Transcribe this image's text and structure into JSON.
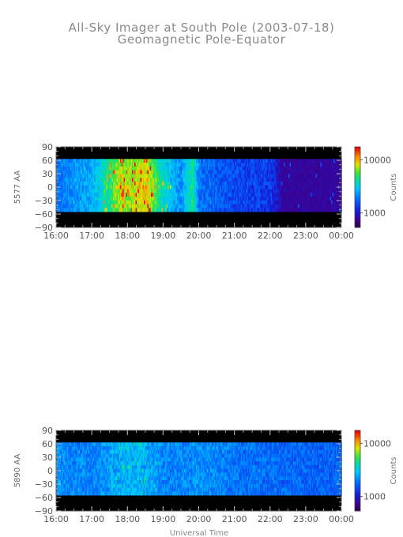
{
  "title": "All-Sky Imager at South Pole (2003-07-18)",
  "subtitle": "Geomagnetic Pole-Equator",
  "xlabel": "Universal Time",
  "chart_data": [
    {
      "type": "heatmap",
      "ylabel": "5577 AA",
      "x_ticks": [
        "16:00",
        "17:00",
        "18:00",
        "19:00",
        "20:00",
        "21:00",
        "22:00",
        "23:00",
        "00:00"
      ],
      "y_ticks": [
        "90",
        "60",
        "30",
        "0",
        "-30",
        "-60",
        "-90"
      ],
      "ylim": [
        -90,
        90
      ],
      "data_ylim": [
        -55,
        63
      ],
      "colorbar": {
        "title": "Counts",
        "ticks": [
          "10000",
          "1000"
        ],
        "scale": "log"
      },
      "intensity_profile": {
        "note_hours": [
          16,
          17,
          17.5,
          17.8,
          18.0,
          18.5,
          19.0,
          19.5,
          19.8,
          20.0,
          21.0,
          22.0,
          22.3,
          23.0,
          24.0
        ],
        "level": [
          0.35,
          0.45,
          0.6,
          0.75,
          0.7,
          0.78,
          0.5,
          0.4,
          0.62,
          0.35,
          0.28,
          0.25,
          0.12,
          0.1,
          0.1
        ]
      }
    },
    {
      "type": "heatmap",
      "ylabel": "5890 AA",
      "x_ticks": [
        "16:00",
        "17:00",
        "18:00",
        "19:00",
        "20:00",
        "21:00",
        "22:00",
        "23:00",
        "00:00"
      ],
      "y_ticks": [
        "90",
        "60",
        "30",
        "0",
        "-30",
        "-60",
        "-90"
      ],
      "ylim": [
        -90,
        90
      ],
      "data_ylim": [
        -55,
        63
      ],
      "colorbar": {
        "title": "Counts",
        "ticks": [
          "10000",
          "1000"
        ],
        "scale": "log"
      },
      "intensity_profile": {
        "note_hours": [
          16,
          17,
          18,
          18.5,
          19,
          20,
          21,
          22,
          23,
          24
        ],
        "level": [
          0.4,
          0.38,
          0.45,
          0.44,
          0.38,
          0.4,
          0.36,
          0.34,
          0.33,
          0.33
        ]
      }
    }
  ]
}
